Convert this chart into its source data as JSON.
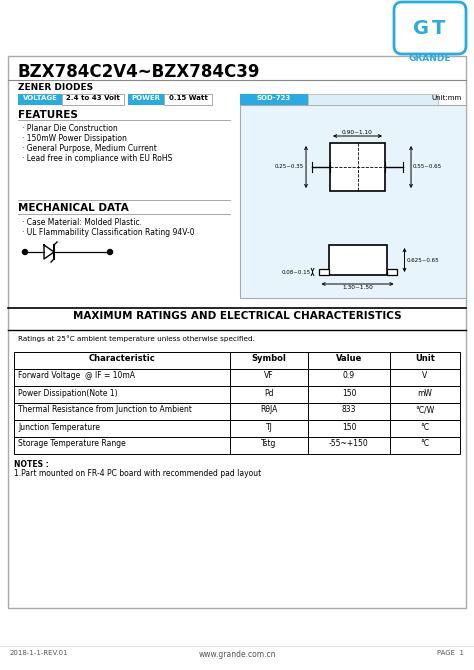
{
  "title": "BZX784C2V4~BZX784C39",
  "subtitle": "ZENER DIODES",
  "logo_color": "#29abe2",
  "voltage_label": "VOLTAGE",
  "voltage_value": "2.4 to 43 Volt",
  "power_label": "POWER",
  "power_value": "0.15 Watt",
  "pkg_label": "SOD-723",
  "pkg_unit": "Unit:mm",
  "features_title": "FEATURES",
  "features": [
    "· Planar Die Construction",
    "· 150mW Power Dissipation",
    "· General Purpose, Medium Current",
    "· Lead free in compliance with EU RoHS"
  ],
  "mech_title": "MECHANICAL DATA",
  "mech_features": [
    "· Case Material: Molded Plastic.",
    "· UL Flammability Classification Rating 94V-0"
  ],
  "ratings_note": "Ratings at 25°C ambient temperature unless otherwise specified.",
  "table_header": [
    "Characteristic",
    "Symbol",
    "Value",
    "Unit"
  ],
  "table_rows": [
    [
      "Forward Voltage  @ IF = 10mA",
      "VF",
      "0.9",
      "V"
    ],
    [
      "Power Dissipation(Note 1)",
      "Pd",
      "150",
      "mW"
    ],
    [
      "Thermal Resistance from Junction to Ambient",
      "RθJA",
      "833",
      "°C/W"
    ],
    [
      "Junction Temperature",
      "TJ",
      "150",
      "°C"
    ],
    [
      "Storage Temperature Range",
      "Tstg",
      "-55~+150",
      "°C"
    ]
  ],
  "notes_title": "NOTES :",
  "notes": [
    "1.Part mounted on FR-4 PC board with recommended pad layout"
  ],
  "footer_left": "2018-1-1-REV.01",
  "footer_center": "www.grande.com.cn",
  "footer_right": "PAGE  1",
  "section_header_title": "MAXIMUM RATINGS AND ELECTRICAL CHARACTERISTICS",
  "bg_color": "#ffffff",
  "blue_color": "#29abe2",
  "dim1": "0.90~1.10",
  "dim2": "0.55~0.65",
  "dim3": "0.25~0.35",
  "dim4": "0.625~0.65",
  "dim5": "0.08~0.15",
  "dim6": "1.30~1.50"
}
